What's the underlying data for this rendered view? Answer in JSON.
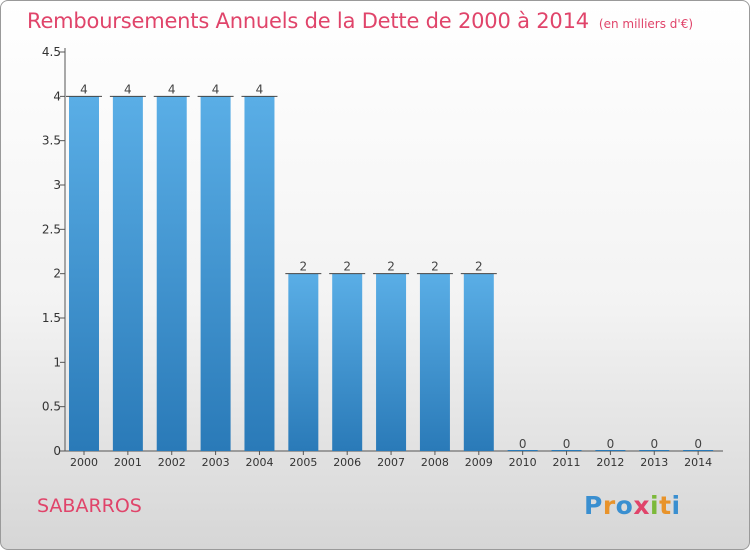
{
  "header": {
    "title": "Remboursements Annuels de la Dette de 2000 à 2014",
    "subtitle": "(en milliers d'€)"
  },
  "footer": {
    "place": "SABARROS",
    "logo": "Proxiti"
  },
  "colors": {
    "title": "#e0446a",
    "bar_top": "#5aaee6",
    "bar_bottom": "#2a7ab8",
    "axis": "#555555",
    "logo_letters": [
      "#3a8fd0",
      "#e8932a",
      "#3a8fd0",
      "#e0446a",
      "#7cb93a",
      "#e8932a",
      "#3a8fd0"
    ]
  },
  "chart_data": {
    "type": "bar",
    "categories": [
      "2000",
      "2001",
      "2002",
      "2003",
      "2004",
      "2005",
      "2006",
      "2007",
      "2008",
      "2009",
      "2010",
      "2011",
      "2012",
      "2013",
      "2014"
    ],
    "values": [
      4,
      4,
      4,
      4,
      4,
      2,
      2,
      2,
      2,
      2,
      0,
      0,
      0,
      0,
      0
    ],
    "value_labels": [
      "4",
      "4",
      "4",
      "4",
      "4",
      "2",
      "2",
      "2",
      "2",
      "2",
      "0",
      "0",
      "0",
      "0",
      "0"
    ],
    "title": "Remboursements Annuels de la Dette de 2000 à 2014",
    "subtitle": "(en milliers d'€)",
    "xlabel": "",
    "ylabel": "",
    "ylim": [
      0,
      4.5
    ],
    "yticks": [
      0,
      0.5,
      1,
      1.5,
      2,
      2.5,
      3,
      3.5,
      4,
      4.5
    ],
    "ytick_labels": [
      "0",
      "0.5",
      "1",
      "1.5",
      "2",
      "2.5",
      "3",
      "3.5",
      "4",
      "4.5"
    ],
    "grid": false,
    "legend": "none"
  }
}
